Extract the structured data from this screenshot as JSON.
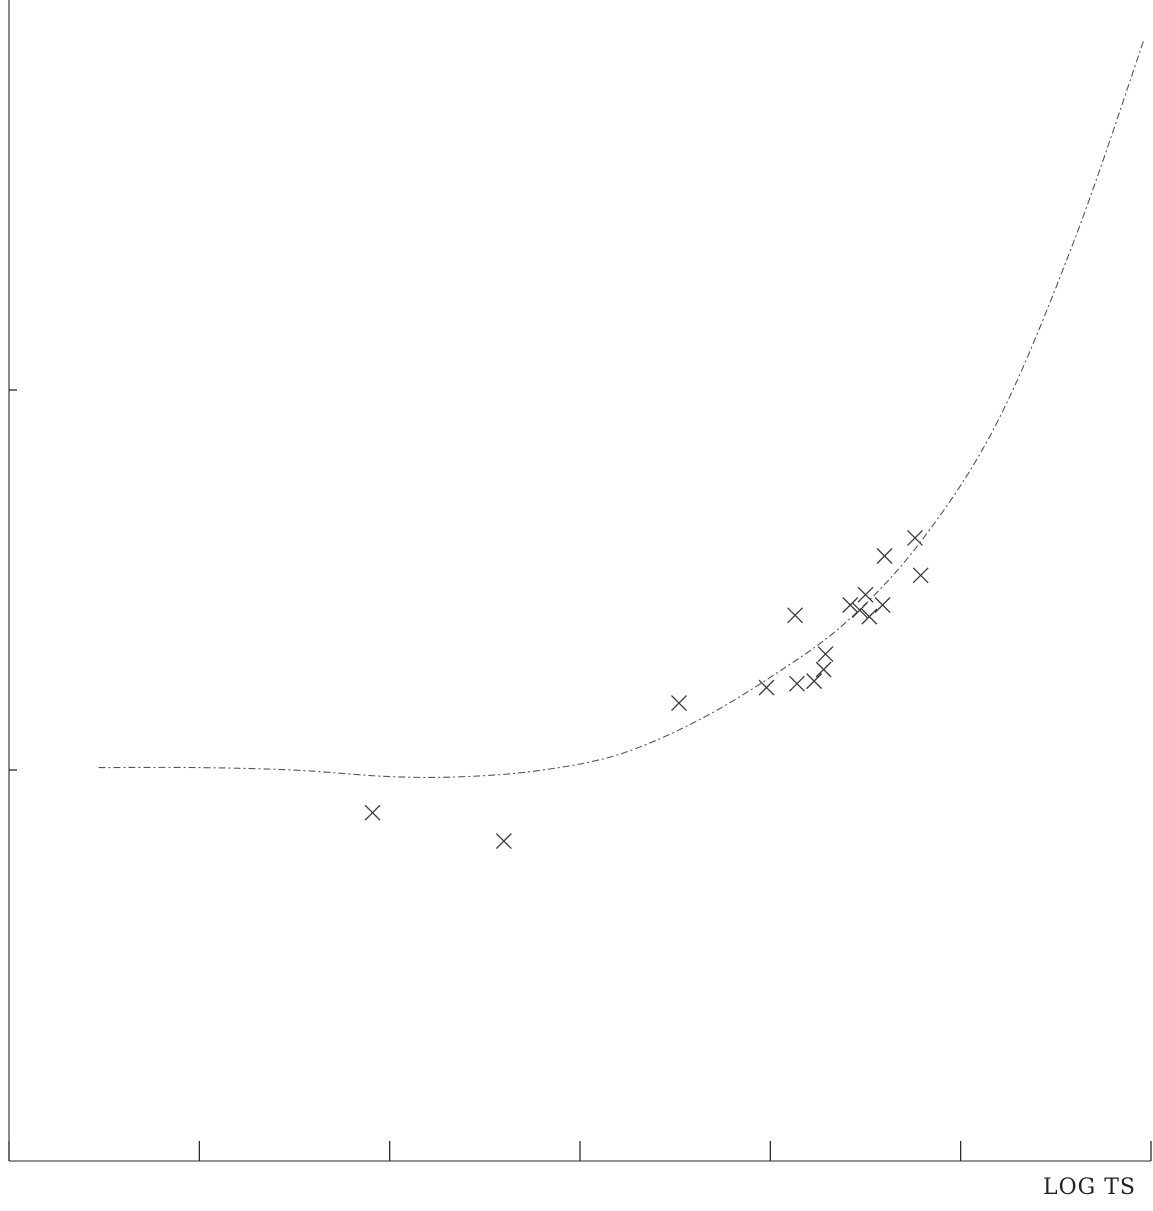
{
  "chart_data": {
    "type": "scatter",
    "title": "",
    "xlabel": "LOG TS",
    "ylabel": "",
    "xlim": [
      0,
      6
    ],
    "ylim": [
      -3,
      6
    ],
    "x_ticks": [
      0,
      1,
      2,
      3,
      4,
      5,
      6
    ],
    "x_tick_labels": [],
    "grid": false,
    "legend": "none",
    "marker": "x",
    "points": [
      {
        "x": 1.91,
        "y": -0.3
      },
      {
        "x": 2.6,
        "y": -0.52
      },
      {
        "x": 3.52,
        "y": 0.55
      },
      {
        "x": 3.98,
        "y": 0.67
      },
      {
        "x": 4.13,
        "y": 1.23
      },
      {
        "x": 4.14,
        "y": 0.7
      },
      {
        "x": 4.23,
        "y": 0.72
      },
      {
        "x": 4.28,
        "y": 0.81
      },
      {
        "x": 4.29,
        "y": 0.93
      },
      {
        "x": 4.42,
        "y": 1.31
      },
      {
        "x": 4.47,
        "y": 1.27
      },
      {
        "x": 4.5,
        "y": 1.39
      },
      {
        "x": 4.52,
        "y": 1.22
      },
      {
        "x": 4.59,
        "y": 1.31
      },
      {
        "x": 4.6,
        "y": 1.69
      },
      {
        "x": 4.76,
        "y": 1.83
      },
      {
        "x": 4.79,
        "y": 1.54
      }
    ],
    "fit_curve": {
      "x": [
        0.47,
        1.0,
        1.5,
        2.0,
        2.4,
        2.8,
        3.2,
        3.6,
        4.0,
        4.4,
        4.8,
        5.2,
        5.6,
        5.96
      ],
      "y": [
        0.05,
        0.05,
        0.03,
        -0.02,
        -0.02,
        0.03,
        0.15,
        0.4,
        0.75,
        1.18,
        1.82,
        2.75,
        4.15,
        5.68
      ]
    }
  }
}
